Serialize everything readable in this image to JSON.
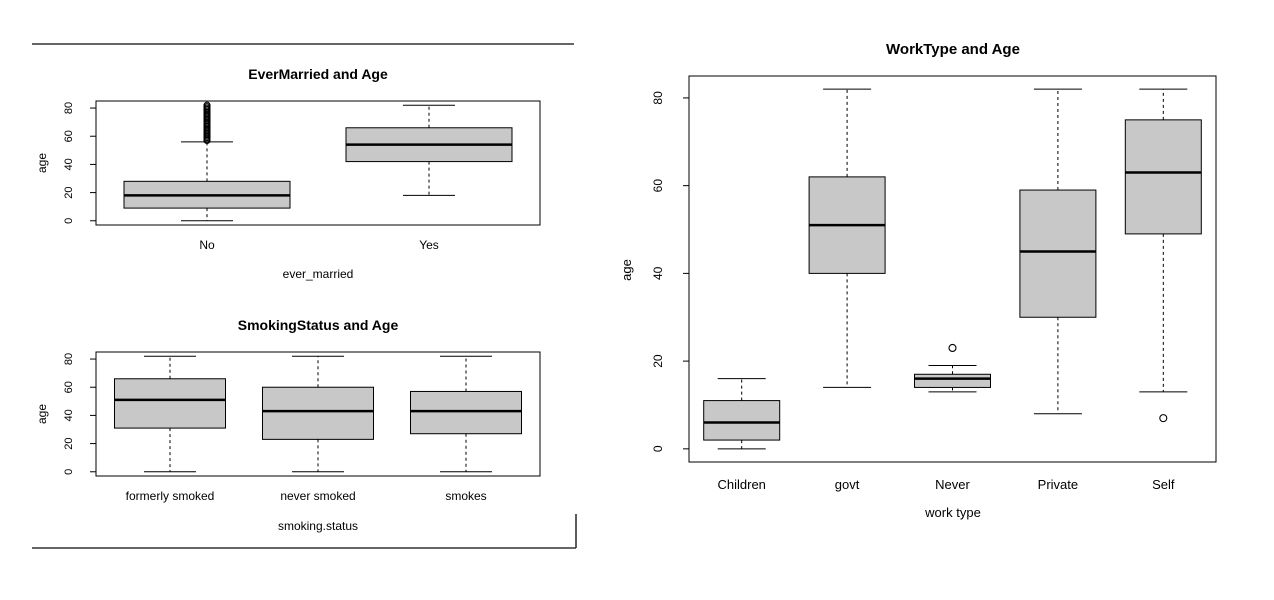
{
  "chart_data": [
    {
      "type": "box",
      "title": "EverMarried and Age",
      "xlabel": "ever_married",
      "ylabel": "age",
      "ylim": [
        -3,
        85
      ],
      "yticks": [
        0,
        20,
        40,
        60,
        80
      ],
      "categories": [
        "No",
        "Yes"
      ],
      "boxes": [
        {
          "label": "No",
          "whisker_low": 0,
          "q1": 9,
          "median": 18,
          "q3": 28,
          "whisker_high": 56,
          "outliers": [
            57,
            58,
            59,
            60,
            61,
            62,
            63,
            64,
            65,
            66,
            67,
            68,
            69,
            70,
            71,
            72,
            73,
            74,
            75,
            76,
            77,
            78,
            79,
            80,
            81,
            82
          ]
        },
        {
          "label": "Yes",
          "whisker_low": 18,
          "q1": 42,
          "median": 54,
          "q3": 66,
          "whisker_high": 82,
          "outliers": []
        }
      ]
    },
    {
      "type": "box",
      "title": "SmokingStatus and Age",
      "xlabel": "smoking.status",
      "ylabel": "age",
      "ylim": [
        -3,
        85
      ],
      "yticks": [
        0,
        20,
        40,
        60,
        80
      ],
      "categories": [
        "formerly smoked",
        "never smoked",
        "smokes"
      ],
      "boxes": [
        {
          "label": "formerly smoked",
          "whisker_low": 0,
          "q1": 31,
          "median": 51,
          "q3": 66,
          "whisker_high": 82,
          "outliers": []
        },
        {
          "label": "never smoked",
          "whisker_low": 0,
          "q1": 23,
          "median": 43,
          "q3": 60,
          "whisker_high": 82,
          "outliers": []
        },
        {
          "label": "smokes",
          "whisker_low": 0,
          "q1": 27,
          "median": 43,
          "q3": 57,
          "whisker_high": 82,
          "outliers": []
        }
      ]
    },
    {
      "type": "box",
      "title": "WorkType and Age",
      "xlabel": "work type",
      "ylabel": "age",
      "ylim": [
        -3,
        85
      ],
      "yticks": [
        0,
        20,
        40,
        60,
        80
      ],
      "categories": [
        "Children",
        "govt",
        "Never",
        "Private",
        "Self"
      ],
      "boxes": [
        {
          "label": "Children",
          "whisker_low": 0,
          "q1": 2,
          "median": 6,
          "q3": 11,
          "whisker_high": 16,
          "outliers": []
        },
        {
          "label": "govt",
          "whisker_low": 14,
          "q1": 40,
          "median": 51,
          "q3": 62,
          "whisker_high": 82,
          "outliers": []
        },
        {
          "label": "Never",
          "whisker_low": 13,
          "q1": 14,
          "median": 16,
          "q3": 17,
          "whisker_high": 19,
          "outliers": [
            23
          ]
        },
        {
          "label": "Private",
          "whisker_low": 8,
          "q1": 30,
          "median": 45,
          "q3": 59,
          "whisker_high": 82,
          "outliers": []
        },
        {
          "label": "Self",
          "whisker_low": 13,
          "q1": 49,
          "median": 63,
          "q3": 75,
          "whisker_high": 82,
          "outliers": [
            7
          ]
        }
      ]
    }
  ],
  "colors": {
    "box_fill": "#c8c8c8",
    "stroke": "#000000"
  }
}
